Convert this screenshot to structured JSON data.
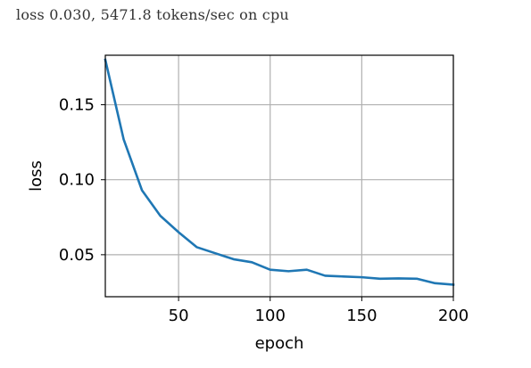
{
  "status_text": "loss 0.030, 5471.8 tokens/sec on cpu",
  "chart_data": {
    "type": "line",
    "title": "",
    "xlabel": "epoch",
    "ylabel": "loss",
    "xlim": [
      10,
      200
    ],
    "ylim": [
      0.022,
      0.183
    ],
    "xticks": [
      50,
      100,
      150,
      200
    ],
    "yticks": [
      0.05,
      0.1,
      0.15
    ],
    "ytick_labels": [
      "0.05",
      "0.10",
      "0.15"
    ],
    "grid": true,
    "series": [
      {
        "color": "#1f77b4",
        "x": [
          10,
          20,
          30,
          40,
          50,
          60,
          70,
          80,
          90,
          100,
          110,
          120,
          130,
          140,
          150,
          160,
          170,
          180,
          190,
          200
        ],
        "y": [
          0.18,
          0.127,
          0.093,
          0.076,
          0.065,
          0.055,
          0.051,
          0.047,
          0.045,
          0.04,
          0.039,
          0.04,
          0.036,
          0.0355,
          0.035,
          0.034,
          0.0342,
          0.034,
          0.031,
          0.03
        ]
      }
    ]
  }
}
